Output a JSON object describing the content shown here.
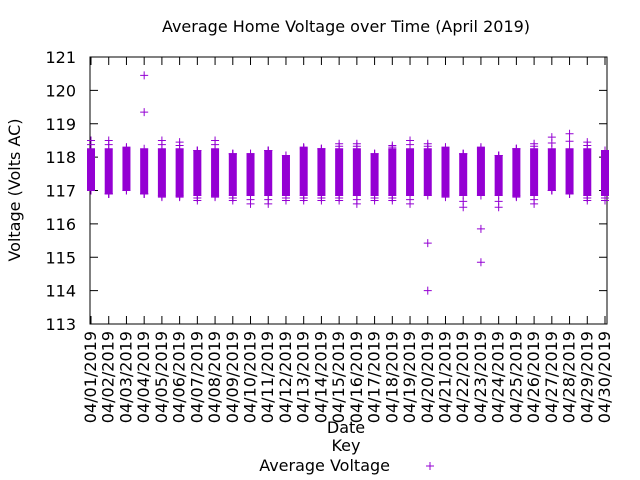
{
  "chart_data": {
    "type": "scatter",
    "title": "Average Home Voltage over Time (April 2019)",
    "xlabel": "Date",
    "ylabel": "Voltage (Volts AC)",
    "ylim": [
      113,
      121
    ],
    "yticks": [
      113,
      114,
      115,
      116,
      117,
      118,
      119,
      120,
      121
    ],
    "categories": [
      "04/01/2019",
      "04/02/2019",
      "04/03/2019",
      "04/04/2019",
      "04/05/2019",
      "04/06/2019",
      "04/07/2019",
      "04/08/2019",
      "04/09/2019",
      "04/10/2019",
      "04/11/2019",
      "04/12/2019",
      "04/13/2019",
      "04/14/2019",
      "04/15/2019",
      "04/16/2019",
      "04/17/2019",
      "04/18/2019",
      "04/19/2019",
      "04/20/2019",
      "04/21/2019",
      "04/22/2019",
      "04/23/2019",
      "04/24/2019",
      "04/25/2019",
      "04/26/2019",
      "04/27/2019",
      "04/28/2019",
      "04/29/2019",
      "04/30/2019"
    ],
    "marker": "+",
    "color": "#9400d3",
    "grid": false,
    "legend": {
      "title": "Key",
      "position": "bottom-center"
    },
    "series": [
      {
        "name": "Average Voltage",
        "daily_range": [
          [
            117.0,
            118.5
          ],
          [
            116.9,
            118.5
          ],
          [
            117.0,
            118.3
          ],
          [
            116.9,
            120.45
          ],
          [
            116.8,
            118.5
          ],
          [
            116.8,
            118.45
          ],
          [
            116.7,
            118.2
          ],
          [
            116.8,
            118.5
          ],
          [
            116.7,
            118.1
          ],
          [
            116.6,
            118.1
          ],
          [
            116.6,
            118.2
          ],
          [
            116.7,
            118.05
          ],
          [
            116.7,
            118.3
          ],
          [
            116.7,
            118.25
          ],
          [
            116.7,
            118.4
          ],
          [
            116.6,
            118.4
          ],
          [
            116.7,
            118.1
          ],
          [
            116.7,
            118.35
          ],
          [
            116.6,
            118.5
          ],
          [
            114.0,
            118.4
          ],
          [
            116.8,
            118.3
          ],
          [
            116.5,
            118.1
          ],
          [
            114.85,
            118.3
          ],
          [
            116.5,
            118.05
          ],
          [
            116.8,
            118.25
          ],
          [
            116.6,
            118.4
          ],
          [
            117.0,
            118.6
          ],
          [
            116.9,
            118.7
          ],
          [
            116.7,
            118.45
          ],
          [
            116.7,
            118.2
          ]
        ]
      }
    ]
  }
}
